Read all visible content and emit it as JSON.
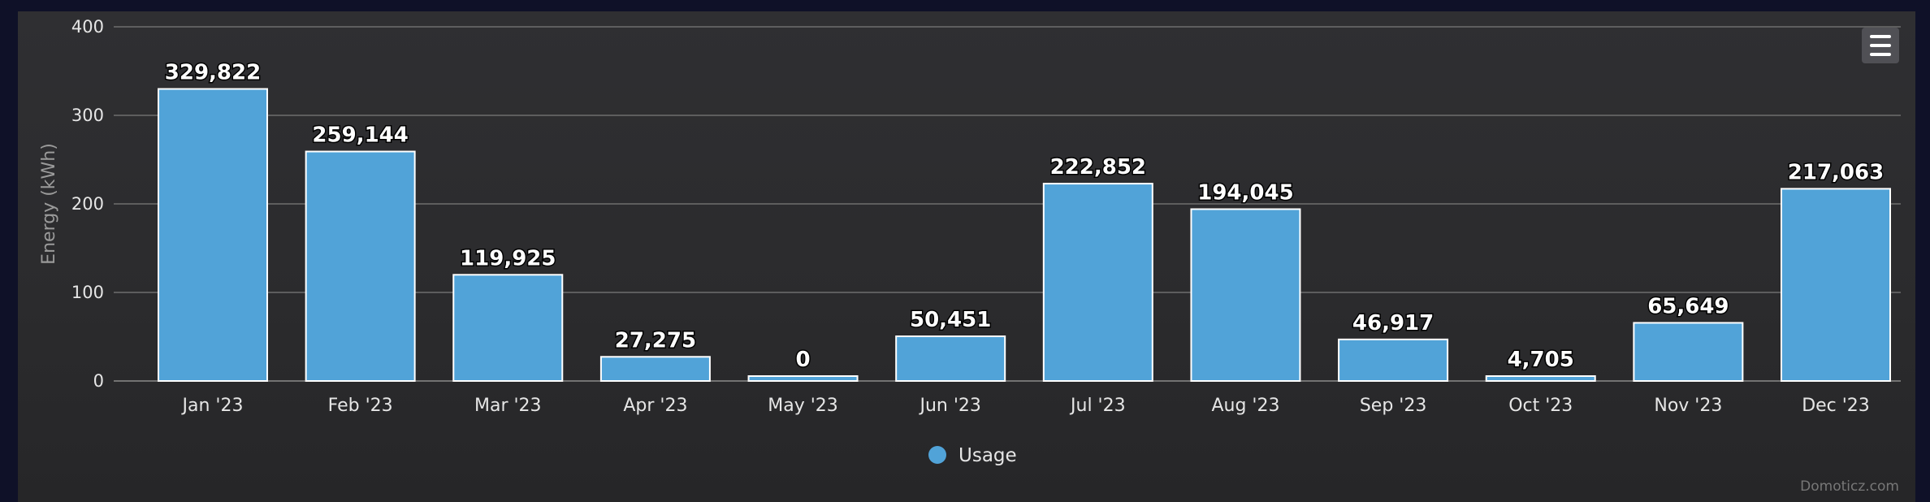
{
  "chart_data": {
    "type": "bar",
    "ylabel": "Energy (kWh)",
    "ylim": [
      0,
      400
    ],
    "yticks": [
      0,
      100,
      200,
      300,
      400
    ],
    "grid": true,
    "legend_position": "bottom-center",
    "categories": [
      "Jan '23",
      "Feb '23",
      "Mar '23",
      "Apr '23",
      "May '23",
      "Jun '23",
      "Jul '23",
      "Aug '23",
      "Sep '23",
      "Oct '23",
      "Nov '23",
      "Dec '23"
    ],
    "series": [
      {
        "name": "Usage",
        "color": "#51a3d8",
        "values": [
          329.822,
          259.144,
          119.925,
          27.275,
          0,
          50.451,
          222.852,
          194.045,
          46.917,
          4.705,
          65.649,
          217.063
        ],
        "data_labels": [
          "329,822",
          "259,144",
          "119,925",
          "27,275",
          "0",
          "50,451",
          "222,852",
          "194,045",
          "46,917",
          "4,705",
          "65,649",
          "217,063"
        ]
      }
    ]
  },
  "credits": "Domoticz.com",
  "menu_icon": "hamburger-menu-icon"
}
